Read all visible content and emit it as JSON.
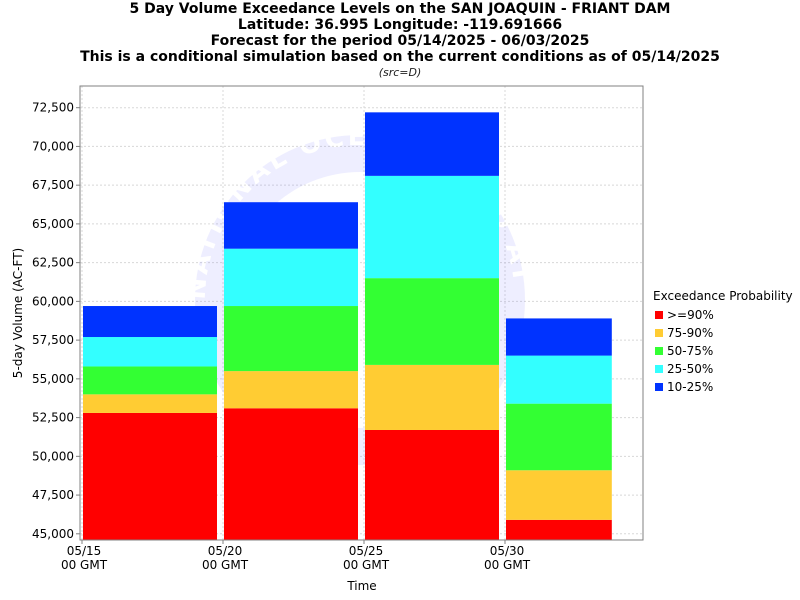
{
  "chart_data": {
    "type": "bar",
    "stacked": true,
    "titles": [
      "5 Day Volume Exceedance Levels on the SAN JOAQUIN - FRIANT DAM",
      "Latitude: 36.995 Longitude: -119.691666",
      "Forecast for the period 05/14/2025 - 06/03/2025",
      "This is a conditional simulation based on the current conditions as of 05/14/2025"
    ],
    "source_note": "(src=D)",
    "xlabel": "Time",
    "ylabel": "5-day Volume (AC-FT)",
    "ylim": [
      44600,
      73900
    ],
    "yticks": [
      "45,000",
      "47,500",
      "50,000",
      "52,500",
      "55,000",
      "57,500",
      "60,000",
      "62,500",
      "65,000",
      "67,500",
      "70,000",
      "72,500"
    ],
    "ytick_values": [
      45000,
      47500,
      50000,
      52500,
      55000,
      57500,
      60000,
      62500,
      65000,
      67500,
      70000,
      72500
    ],
    "xticks": [
      {
        "date": "05/15",
        "time": "00 GMT"
      },
      {
        "date": "05/20",
        "time": "00 GMT"
      },
      {
        "date": "05/25",
        "time": "00 GMT"
      },
      {
        "date": "05/30",
        "time": "00 GMT"
      }
    ],
    "periods": [
      {
        "start": "05/15",
        "end": "05/20"
      },
      {
        "start": "05/20",
        "end": "05/25"
      },
      {
        "start": "05/25",
        "end": "05/30"
      },
      {
        "start": "05/30",
        "end": "06/03"
      }
    ],
    "series": [
      {
        "name": ">=90%",
        "color": "#ff0000",
        "lower": [
          44600,
          44600,
          44600,
          44600
        ],
        "upper": [
          52800,
          53100,
          51700,
          45900
        ]
      },
      {
        "name": "75-90%",
        "color": "#ffcc33",
        "lower": [
          52800,
          53100,
          51700,
          45900
        ],
        "upper": [
          54000,
          55500,
          55900,
          49100
        ]
      },
      {
        "name": "50-75%",
        "color": "#33ff33",
        "lower": [
          54000,
          55500,
          55900,
          49100
        ],
        "upper": [
          55800,
          59700,
          61500,
          53400
        ]
      },
      {
        "name": "25-50%",
        "color": "#33ffff",
        "lower": [
          55800,
          59700,
          61500,
          53400
        ],
        "upper": [
          57700,
          63400,
          68100,
          56500
        ]
      },
      {
        "name": "10-25%",
        "color": "#0033ff",
        "lower": [
          57700,
          63400,
          68100,
          56500
        ],
        "upper": [
          59700,
          66400,
          72200,
          58900
        ]
      }
    ],
    "legend_title": "Exceedance Probability",
    "legend_position": "right",
    "grid": true,
    "watermark": "NATIONAL OCEANIC AND ATMOSPHERIC ADMINISTRATION"
  }
}
